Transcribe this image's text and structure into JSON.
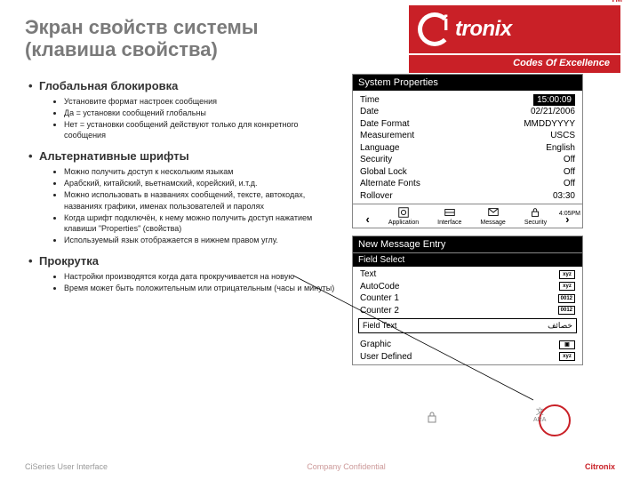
{
  "title_line1": "Экран свойств системы",
  "title_line2": "(клавиша свойства)",
  "logo": {
    "brand": "tronix",
    "tagline": "Codes Of Excellence",
    "tm": "TM"
  },
  "sections": [
    {
      "head": "Глобальная блокировка",
      "items": [
        "Установите формат настроек сообщения",
        "Да = установки сообщений глобальны",
        "Нет = установки сообщений действуют только для конкретного сообщения"
      ]
    },
    {
      "head": "Альтернативные шрифты",
      "items": [
        "Можно получить доступ к нескольким языкам",
        "Арабский, китайский, вьетнамский, корейский, и.т.д.",
        "Можно использовать в названиях сообщений, тексте, автокодах, названиях графики, именах пользователей и паролях",
        "Когда шрифт подключён, к нему можно получить доступ нажатием клавиши \"Properties\" (свойства)",
        "Используемый язык отображается в нижнем правом углу."
      ]
    },
    {
      "head": "Прокрутка",
      "items": [
        "Настройки производятся когда дата прокручивается на новую",
        "Время может быть положительным или отрицательным (часы и минуты)"
      ]
    }
  ],
  "screen1": {
    "title": "System Properties",
    "rows": [
      {
        "k": "Time",
        "v": "15:00:09",
        "sel": true
      },
      {
        "k": "Date",
        "v": "02/21/2006"
      },
      {
        "k": "Date Format",
        "v": "MMDDYYYY"
      },
      {
        "k": "Measurement",
        "v": "USCS"
      },
      {
        "k": "Language",
        "v": "English"
      },
      {
        "k": "Security",
        "v": "Off"
      },
      {
        "k": "Global Lock",
        "v": "Off"
      },
      {
        "k": "Alternate Fonts",
        "v": "Off"
      },
      {
        "k": "Rollover",
        "v": "03:30"
      }
    ],
    "icons": [
      "Application",
      "Interface",
      "Message",
      "Security"
    ],
    "time_small": "4:05PM"
  },
  "screen2": {
    "title": "New Message Entry",
    "subtitle": "Field Select",
    "fields": [
      {
        "name": "Text",
        "badge": "xyz"
      },
      {
        "name": "AutoCode",
        "badge": "xyz"
      },
      {
        "name": "Counter 1",
        "badge": "0012"
      },
      {
        "name": "Counter 2",
        "badge": "0012"
      },
      {
        "name": "Graphic",
        "badge": "▣"
      },
      {
        "name": "User Defined",
        "badge": "xyz"
      }
    ],
    "field_text_label": "Field Text",
    "field_text_val": "خصائف",
    "lang_badge": "ARA"
  },
  "footer": {
    "l": "CiSeries User Interface",
    "m": "Company Confidential",
    "r": "Citronix"
  }
}
